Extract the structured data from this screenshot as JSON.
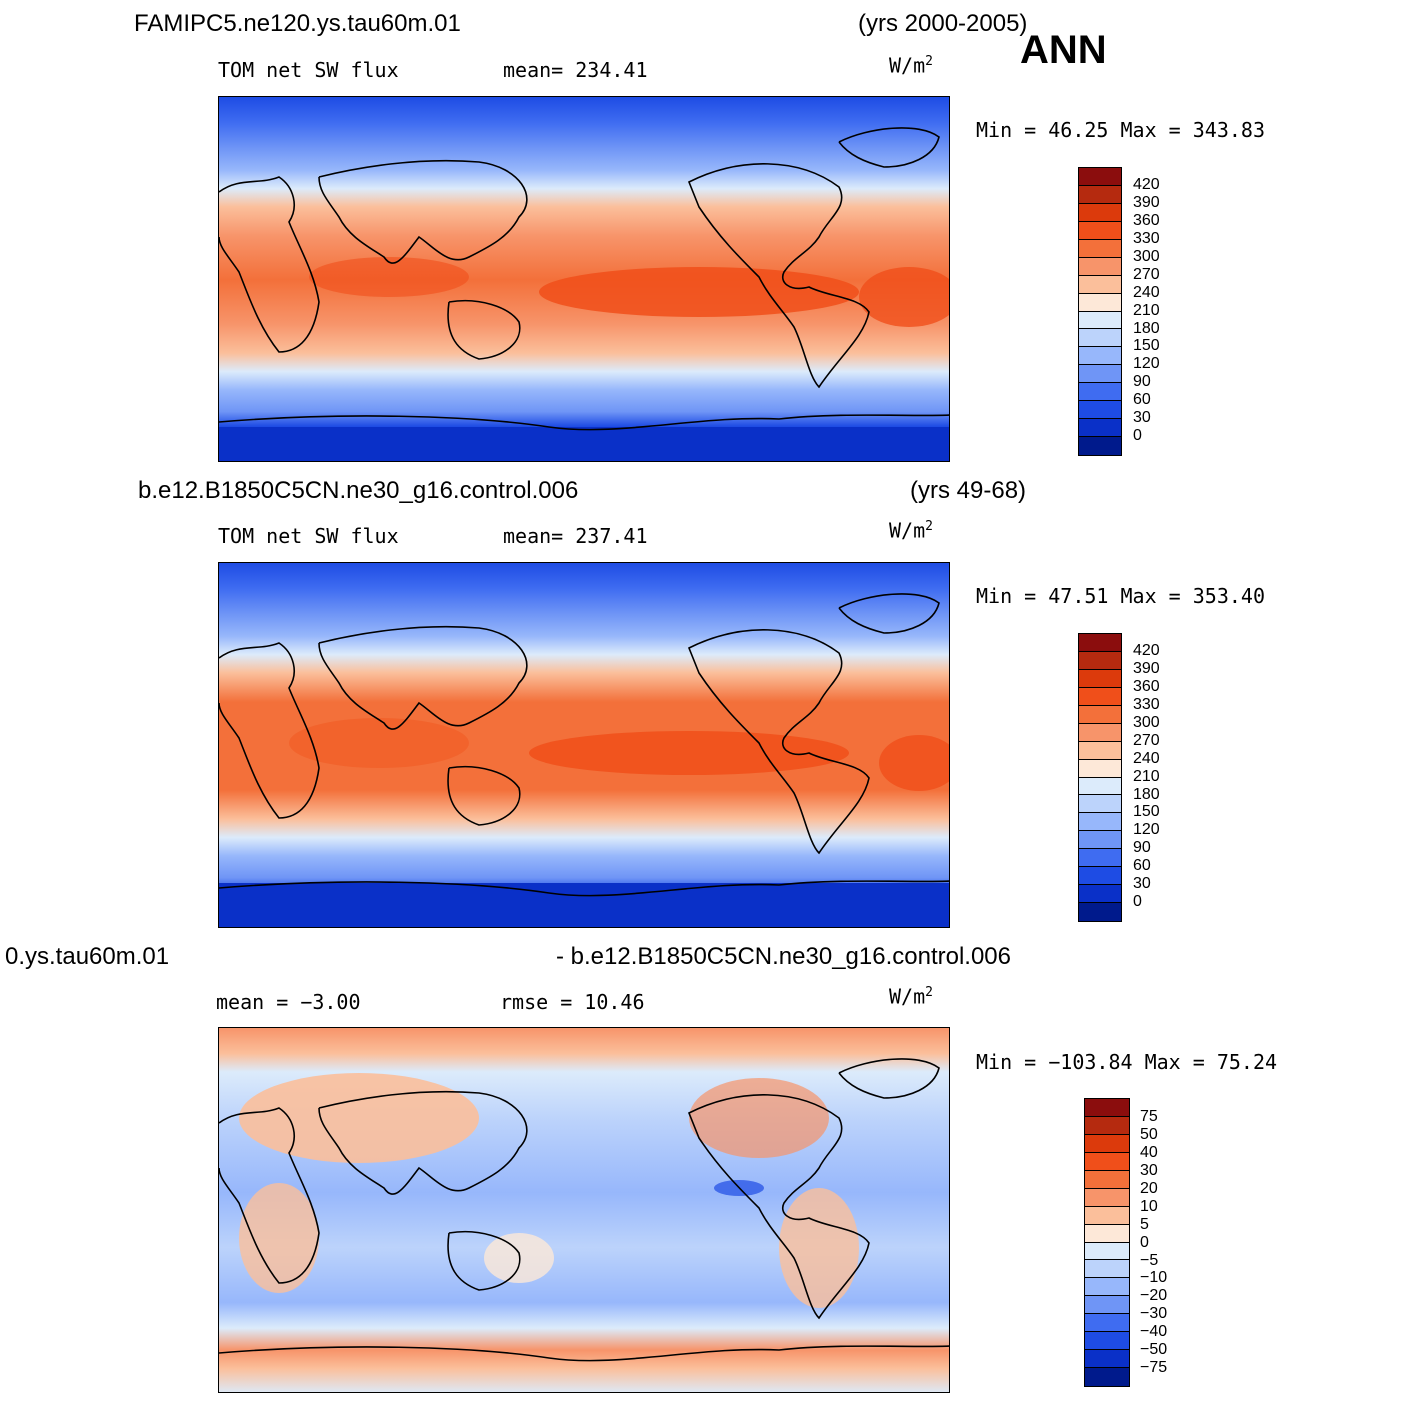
{
  "header": {
    "case1": "FAMIPC5.ne120.ys.tau60m.01",
    "years1": "(yrs 2000-2005)",
    "season": "ANN",
    "case2": "b.e12.B1850C5CN.ne30_g16.control.006",
    "years2": "(yrs 49-68)",
    "diff_left": "0.ys.tau60m.01",
    "diff_right": "- b.e12.B1850C5CN.ne30_g16.control.006"
  },
  "panels": [
    {
      "variable": "TOM net SW flux",
      "stat1": "mean= 234.41",
      "stat2": "",
      "units_base": "W/m",
      "units_exp": "2",
      "minmax": "Min =   46.25 Max =  343.83",
      "colorbar_labels": [
        "420",
        "390",
        "360",
        "330",
        "300",
        "270",
        "240",
        "210",
        "180",
        "150",
        "120",
        "90",
        "60",
        "30",
        "0"
      ]
    },
    {
      "variable": "TOM net SW flux",
      "stat1": "mean= 237.41",
      "stat2": "",
      "units_base": "W/m",
      "units_exp": "2",
      "minmax": "Min =   47.51 Max =  353.40",
      "colorbar_labels": [
        "420",
        "390",
        "360",
        "330",
        "300",
        "270",
        "240",
        "210",
        "180",
        "150",
        "120",
        "90",
        "60",
        "30",
        "0"
      ]
    },
    {
      "variable": "",
      "stat1": "mean =   −3.00",
      "stat2": "rmse =   10.46",
      "units_base": "W/m",
      "units_exp": "2",
      "minmax": "Min = −103.84 Max =   75.24",
      "colorbar_labels": [
        "75",
        "50",
        "40",
        "30",
        "20",
        "10",
        "5",
        "0",
        "−5",
        "−10",
        "−20",
        "−30",
        "−40",
        "−50",
        "−75"
      ]
    }
  ],
  "colors": {
    "scale16": [
      "#8b0d0d",
      "#b52a0f",
      "#dc3a0c",
      "#f04f1a",
      "#f3703a",
      "#f7946a",
      "#fbbf9b",
      "#fde8d8",
      "#dcebfb",
      "#bcd3fb",
      "#97b7fb",
      "#6f95f6",
      "#3f6cf1",
      "#1e4ce4",
      "#0a30c8",
      "#001a8c"
    ],
    "land_line": "#000000"
  }
}
